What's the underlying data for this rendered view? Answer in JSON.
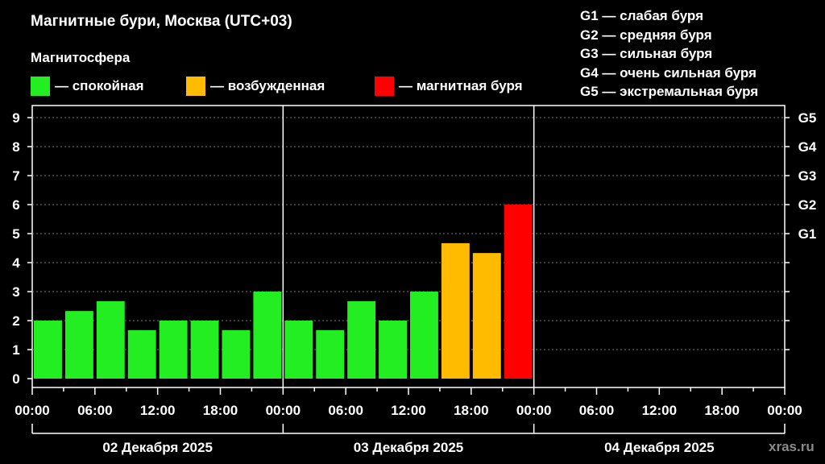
{
  "title": "Магнитные бури, Москва (UTC+03)",
  "subtitle": "Магнитосфера",
  "legend": [
    {
      "label": "— спокойная",
      "color": "#22ee22"
    },
    {
      "label": "— возбужденная",
      "color": "#ffbb00"
    },
    {
      "label": "— магнитная буря",
      "color": "#ff0000"
    }
  ],
  "g_scale": [
    "G1 — слабая буря",
    "G2 — средняя буря",
    "G3 — сильная буря",
    "G4 — очень сильная буря",
    "G5 — экстремальная буря"
  ],
  "watermark": "xras.ru",
  "chart_data": {
    "type": "bar",
    "ylim": [
      0,
      9
    ],
    "yticks": [
      "0",
      "1",
      "2",
      "3",
      "4",
      "5",
      "6",
      "7",
      "8",
      "9"
    ],
    "right_ticks": [
      {
        "value": 5,
        "label": "G1"
      },
      {
        "value": 6,
        "label": "G2"
      },
      {
        "value": 7,
        "label": "G3"
      },
      {
        "value": 8,
        "label": "G4"
      },
      {
        "value": 9,
        "label": "G5"
      }
    ],
    "days": [
      "02 Декабря 2025",
      "03 Декабря 2025",
      "04 Декабря 2025"
    ],
    "xticks": [
      "00:00",
      "06:00",
      "12:00",
      "18:00",
      "00:00",
      "06:00",
      "12:00",
      "18:00",
      "00:00",
      "06:00",
      "12:00",
      "18:00",
      "00:00"
    ],
    "interval_hours": 3,
    "values": [
      2.0,
      2.33,
      2.67,
      1.67,
      2.0,
      2.0,
      1.67,
      3.0,
      2.0,
      1.67,
      2.67,
      2.0,
      3.0,
      4.67,
      4.33,
      6.0
    ],
    "levels": [
      "quiet",
      "quiet",
      "quiet",
      "quiet",
      "quiet",
      "quiet",
      "quiet",
      "quiet",
      "quiet",
      "quiet",
      "quiet",
      "quiet",
      "quiet",
      "active",
      "active",
      "storm"
    ],
    "colors": {
      "quiet": "#22ee22",
      "active": "#ffbb00",
      "storm": "#ff0000"
    },
    "grid": true
  }
}
